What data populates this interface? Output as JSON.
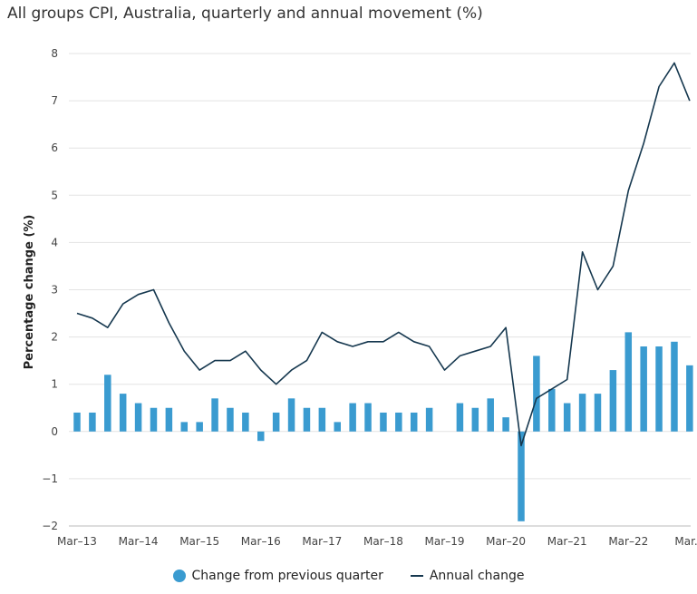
{
  "chart_data": {
    "type": "bar",
    "title": "All groups CPI, Australia, quarterly and annual movement (%)",
    "ylabel": "Percentage change (%)",
    "xlabel": "",
    "ylim": [
      -2,
      8
    ],
    "yticks": [
      -2,
      -1,
      0,
      1,
      2,
      3,
      4,
      5,
      6,
      7,
      8
    ],
    "xtick_labels": [
      "Mar–13",
      "Mar–14",
      "Mar–15",
      "Mar–16",
      "Mar–17",
      "Mar–18",
      "Mar–19",
      "Mar–20",
      "Mar–21",
      "Mar–22",
      "Mar..."
    ],
    "grid": true,
    "legend_position": "bottom",
    "series": [
      {
        "name": "Change from previous quarter",
        "type": "bar",
        "color": "#3a9bd0",
        "values": [
          0.4,
          0.4,
          1.2,
          0.8,
          0.6,
          0.5,
          0.5,
          0.2,
          0.2,
          0.7,
          0.5,
          0.4,
          -0.2,
          0.4,
          0.7,
          0.5,
          0.5,
          0.2,
          0.6,
          0.6,
          0.4,
          0.4,
          0.4,
          0.5,
          0.0,
          0.6,
          0.5,
          0.7,
          0.3,
          -1.9,
          1.6,
          0.9,
          0.6,
          0.8,
          0.8,
          1.3,
          2.1,
          1.8,
          1.8,
          1.9,
          1.4
        ]
      },
      {
        "name": "Annual change",
        "type": "line",
        "color": "#16384f",
        "values": [
          2.5,
          2.4,
          2.2,
          2.7,
          2.9,
          3.0,
          2.3,
          1.7,
          1.3,
          1.5,
          1.5,
          1.7,
          1.3,
          1.0,
          1.3,
          1.5,
          2.1,
          1.9,
          1.8,
          1.9,
          1.9,
          2.1,
          1.9,
          1.8,
          1.3,
          1.6,
          1.7,
          1.8,
          2.2,
          -0.3,
          0.7,
          0.9,
          1.1,
          3.8,
          3.0,
          3.5,
          5.1,
          6.1,
          7.3,
          7.8,
          7.0
        ]
      }
    ]
  }
}
